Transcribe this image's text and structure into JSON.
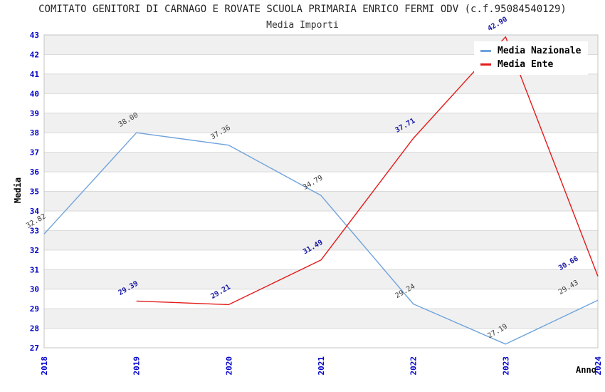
{
  "title": "COMITATO GENITORI DI CARNAGO E ROVATE SCUOLA PRIMARIA ENRICO FERMI ODV (c.f.95084540129)",
  "subtitle": "Media Importi",
  "chart_data": {
    "type": "line",
    "x": [
      "2018",
      "2019",
      "2020",
      "2021",
      "2022",
      "2023",
      "2024"
    ],
    "series": [
      {
        "name": "Media Nazionale",
        "color": "#6fa3dc",
        "label_color": "#404040",
        "label_weight": "normal",
        "values": [
          32.82,
          38.0,
          37.36,
          34.79,
          29.24,
          27.19,
          29.43
        ]
      },
      {
        "name": "Media Ente",
        "color": "#e41b1b",
        "label_color": "#1a1aa6",
        "label_weight": "bold",
        "values": [
          null,
          29.39,
          29.21,
          31.49,
          37.71,
          42.9,
          30.66
        ]
      }
    ],
    "xlabel": "Anno",
    "ylabel": "Media",
    "ylim": [
      27,
      43
    ],
    "ytick_step": 1,
    "grid": true,
    "legend_position": "top-right",
    "colors": {
      "tick_label": "#0000cc",
      "band": "#f0f0f0",
      "grid_line": "#d9d9d9",
      "plot_border": "#c4c4c4"
    }
  }
}
